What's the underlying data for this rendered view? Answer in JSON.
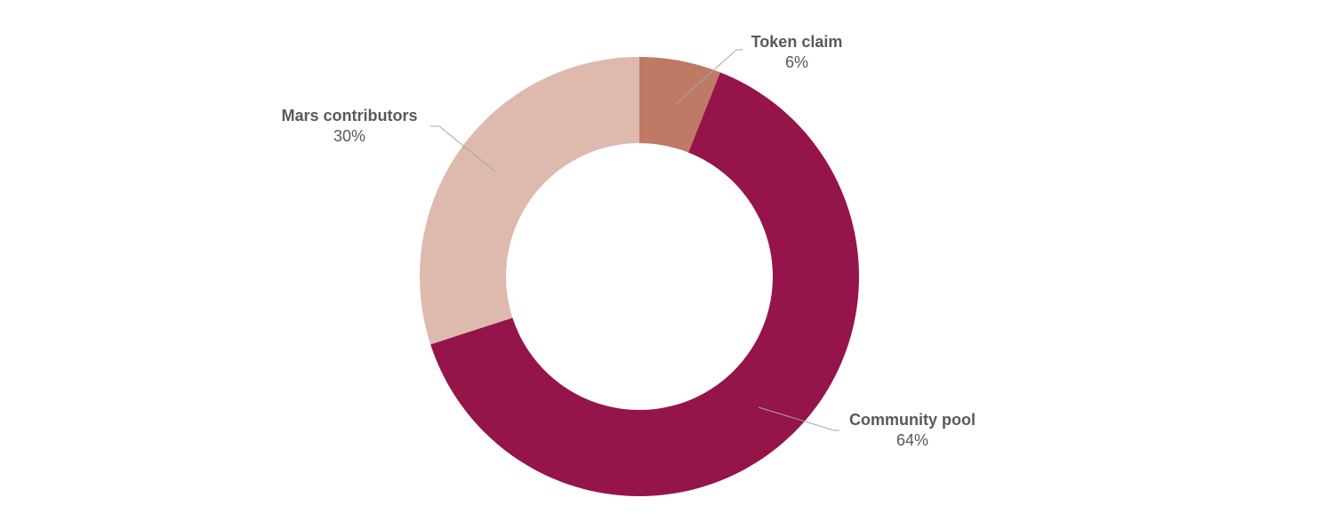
{
  "chart_data": {
    "type": "pie",
    "variant": "donut",
    "title": "",
    "slices": [
      {
        "label": "Token claim",
        "value": 6,
        "display": "6%",
        "color": "#bf7a65"
      },
      {
        "label": "Community pool",
        "value": 64,
        "display": "64%",
        "color": "#95144a"
      },
      {
        "label": "Mars contributors",
        "value": 30,
        "display": "30%",
        "color": "#deb9ae"
      }
    ],
    "start_angle": "12 o'clock",
    "direction": "clockwise",
    "legend": "none",
    "data_labels": "outside with leader lines"
  }
}
